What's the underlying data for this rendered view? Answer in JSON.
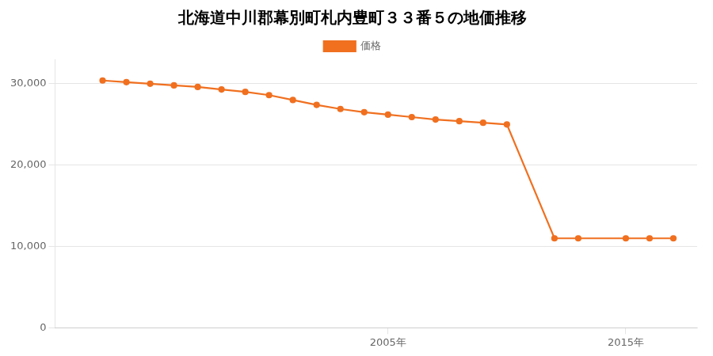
{
  "chart_data": {
    "type": "line",
    "title": "北海道中川郡幕別町札内豊町３３番５の地価推移",
    "x": [
      1993,
      1994,
      1995,
      1996,
      1997,
      1998,
      1999,
      2000,
      2001,
      2002,
      2003,
      2004,
      2005,
      2006,
      2007,
      2008,
      2009,
      2010,
      2012,
      2013,
      2015,
      2016,
      2017
    ],
    "series": [
      {
        "name": "価格",
        "color": "#f07020",
        "values": [
          30400,
          30200,
          30000,
          29800,
          29600,
          29300,
          29000,
          28600,
          28000,
          27400,
          26900,
          26500,
          26200,
          25900,
          25600,
          25400,
          25200,
          25000,
          11000,
          11000,
          11000,
          11000,
          11000
        ]
      }
    ],
    "xlim": [
      1991,
      2018
    ],
    "xticks": [
      {
        "value": 2005,
        "label": "2005年"
      },
      {
        "value": 2015,
        "label": "2015年"
      }
    ],
    "ylim": [
      0,
      33000
    ],
    "yticks": [
      0,
      {
        "value": 10000,
        "label": "10,000"
      },
      {
        "value": 20000,
        "label": "20,000"
      },
      {
        "value": 30000,
        "label": "30,000"
      }
    ],
    "grid": "y",
    "legend": "top",
    "marker": "circle"
  }
}
